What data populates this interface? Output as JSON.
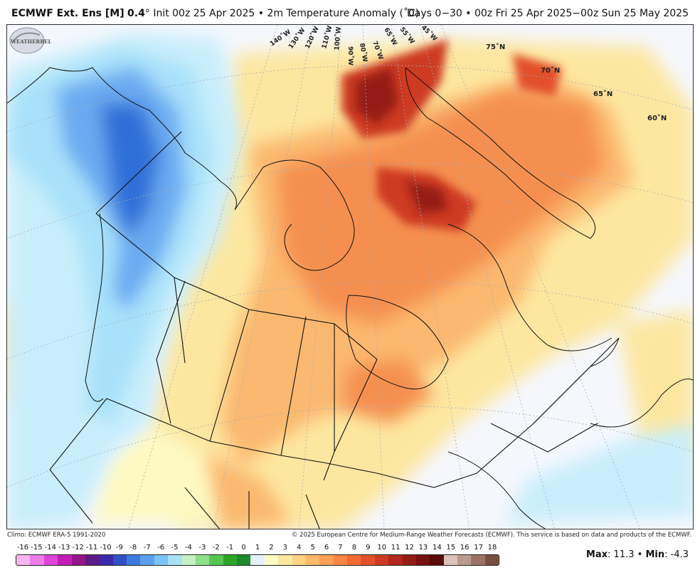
{
  "header": {
    "model": "ECMWF Ext. Ens [M]",
    "resolution": "0.4",
    "resolution_unit": "°",
    "init": "Init 00z 25 Apr 2025",
    "separator": "•",
    "variable": "2m Temperature Anomaly (˚C)",
    "period": "Days 0−30",
    "valid": "00z Fri 25 Apr 2025−00z Sun 25 May 2025"
  },
  "map": {
    "latitude_labels": [
      "75˚N",
      "70˚N",
      "65˚N",
      "60˚N"
    ],
    "longitude_labels": [
      "140˚W",
      "130˚W",
      "120˚W",
      "110˚W",
      "100˚W",
      "90˚W",
      "80˚W",
      "70˚W",
      "65˚W",
      "55˚W",
      "45˚W"
    ],
    "watermark_text": "WEATHERBELL"
  },
  "footer": {
    "climo": "Climo: ECMWF ERA-5 1991-2020",
    "copyright": "© 2025 European Centre for Medium-Range Weather Forecasts (ECMWF). This service is based on data and products of the ECMWF."
  },
  "legend": {
    "labels": [
      "-16",
      "-15",
      "-14",
      "-13",
      "-12",
      "-11",
      "-10",
      "-9",
      "-8",
      "-7",
      "-6",
      "-5",
      "-4",
      "-3",
      "-2",
      "-1",
      "0",
      "1",
      "2",
      "3",
      "4",
      "5",
      "6",
      "7",
      "8",
      "9",
      "10",
      "11",
      "12",
      "13",
      "14",
      "15",
      "16",
      "17",
      "18"
    ],
    "colors": [
      "#f7b5f0",
      "#ee7de8",
      "#de45d6",
      "#c21eb7",
      "#961688",
      "#5e1a87",
      "#3b2aa8",
      "#2f4fc6",
      "#3d79de",
      "#5aa0ec",
      "#7ec3f5",
      "#a9e1fa",
      "#c6f1c0",
      "#8fe08a",
      "#56c650",
      "#2ba528",
      "#1e8a2a",
      "#e4f1fc",
      "#fdf9c3",
      "#fde7a0",
      "#fdd283",
      "#fcba6a",
      "#fba055",
      "#f98444",
      "#f06a33",
      "#e2502a",
      "#cd3a22",
      "#b2281b",
      "#951c15",
      "#78120f",
      "#5b0b0b",
      "#d8c2bb",
      "#b99a8f",
      "#9a7365",
      "#7b4e3f"
    ]
  },
  "stats": {
    "max_label": "Max",
    "max_value": "11.3",
    "min_label": "Min",
    "min_value": "-4.3"
  },
  "colors": {
    "ocean_neutral": "#f5f7fd",
    "cold_deep": "#2f6fd8",
    "cold_mid": "#6aaaf0",
    "cold_light": "#a9e1fa",
    "warm_light": "#fde7a0",
    "warm_mid": "#fbb870",
    "warm_orange": "#f58f50",
    "warm_deep": "#cd3a22",
    "warm_darkest": "#951c15"
  }
}
